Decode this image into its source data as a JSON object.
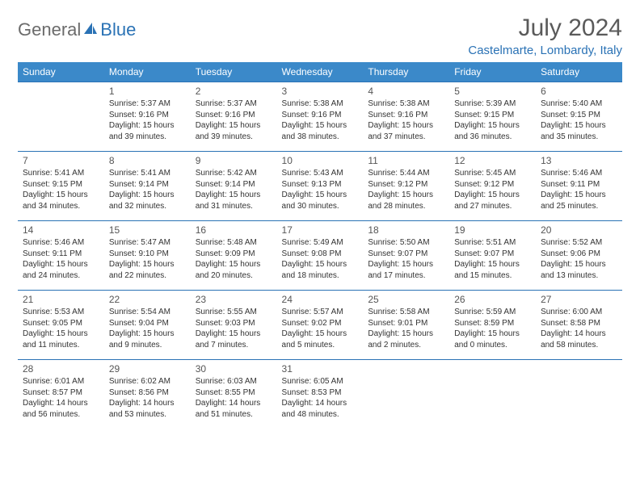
{
  "logo": {
    "text1": "General",
    "text2": "Blue"
  },
  "title": "July 2024",
  "location": "Castelmarte, Lombardy, Italy",
  "colors": {
    "header_bg": "#3b89c9",
    "header_text": "#ffffff",
    "accent": "#2a72b5",
    "body_text": "#333333",
    "title_text": "#5a5a5a",
    "logo_gray": "#6b6b6b",
    "background": "#ffffff"
  },
  "day_headers": [
    "Sunday",
    "Monday",
    "Tuesday",
    "Wednesday",
    "Thursday",
    "Friday",
    "Saturday"
  ],
  "first_day_index": 1,
  "days": [
    {
      "n": 1,
      "sr": "5:37 AM",
      "ss": "9:16 PM",
      "dl": "15 hours and 39 minutes."
    },
    {
      "n": 2,
      "sr": "5:37 AM",
      "ss": "9:16 PM",
      "dl": "15 hours and 39 minutes."
    },
    {
      "n": 3,
      "sr": "5:38 AM",
      "ss": "9:16 PM",
      "dl": "15 hours and 38 minutes."
    },
    {
      "n": 4,
      "sr": "5:38 AM",
      "ss": "9:16 PM",
      "dl": "15 hours and 37 minutes."
    },
    {
      "n": 5,
      "sr": "5:39 AM",
      "ss": "9:15 PM",
      "dl": "15 hours and 36 minutes."
    },
    {
      "n": 6,
      "sr": "5:40 AM",
      "ss": "9:15 PM",
      "dl": "15 hours and 35 minutes."
    },
    {
      "n": 7,
      "sr": "5:41 AM",
      "ss": "9:15 PM",
      "dl": "15 hours and 34 minutes."
    },
    {
      "n": 8,
      "sr": "5:41 AM",
      "ss": "9:14 PM",
      "dl": "15 hours and 32 minutes."
    },
    {
      "n": 9,
      "sr": "5:42 AM",
      "ss": "9:14 PM",
      "dl": "15 hours and 31 minutes."
    },
    {
      "n": 10,
      "sr": "5:43 AM",
      "ss": "9:13 PM",
      "dl": "15 hours and 30 minutes."
    },
    {
      "n": 11,
      "sr": "5:44 AM",
      "ss": "9:12 PM",
      "dl": "15 hours and 28 minutes."
    },
    {
      "n": 12,
      "sr": "5:45 AM",
      "ss": "9:12 PM",
      "dl": "15 hours and 27 minutes."
    },
    {
      "n": 13,
      "sr": "5:46 AM",
      "ss": "9:11 PM",
      "dl": "15 hours and 25 minutes."
    },
    {
      "n": 14,
      "sr": "5:46 AM",
      "ss": "9:11 PM",
      "dl": "15 hours and 24 minutes."
    },
    {
      "n": 15,
      "sr": "5:47 AM",
      "ss": "9:10 PM",
      "dl": "15 hours and 22 minutes."
    },
    {
      "n": 16,
      "sr": "5:48 AM",
      "ss": "9:09 PM",
      "dl": "15 hours and 20 minutes."
    },
    {
      "n": 17,
      "sr": "5:49 AM",
      "ss": "9:08 PM",
      "dl": "15 hours and 18 minutes."
    },
    {
      "n": 18,
      "sr": "5:50 AM",
      "ss": "9:07 PM",
      "dl": "15 hours and 17 minutes."
    },
    {
      "n": 19,
      "sr": "5:51 AM",
      "ss": "9:07 PM",
      "dl": "15 hours and 15 minutes."
    },
    {
      "n": 20,
      "sr": "5:52 AM",
      "ss": "9:06 PM",
      "dl": "15 hours and 13 minutes."
    },
    {
      "n": 21,
      "sr": "5:53 AM",
      "ss": "9:05 PM",
      "dl": "15 hours and 11 minutes."
    },
    {
      "n": 22,
      "sr": "5:54 AM",
      "ss": "9:04 PM",
      "dl": "15 hours and 9 minutes."
    },
    {
      "n": 23,
      "sr": "5:55 AM",
      "ss": "9:03 PM",
      "dl": "15 hours and 7 minutes."
    },
    {
      "n": 24,
      "sr": "5:57 AM",
      "ss": "9:02 PM",
      "dl": "15 hours and 5 minutes."
    },
    {
      "n": 25,
      "sr": "5:58 AM",
      "ss": "9:01 PM",
      "dl": "15 hours and 2 minutes."
    },
    {
      "n": 26,
      "sr": "5:59 AM",
      "ss": "8:59 PM",
      "dl": "15 hours and 0 minutes."
    },
    {
      "n": 27,
      "sr": "6:00 AM",
      "ss": "8:58 PM",
      "dl": "14 hours and 58 minutes."
    },
    {
      "n": 28,
      "sr": "6:01 AM",
      "ss": "8:57 PM",
      "dl": "14 hours and 56 minutes."
    },
    {
      "n": 29,
      "sr": "6:02 AM",
      "ss": "8:56 PM",
      "dl": "14 hours and 53 minutes."
    },
    {
      "n": 30,
      "sr": "6:03 AM",
      "ss": "8:55 PM",
      "dl": "14 hours and 51 minutes."
    },
    {
      "n": 31,
      "sr": "6:05 AM",
      "ss": "8:53 PM",
      "dl": "14 hours and 48 minutes."
    }
  ],
  "labels": {
    "sunrise": "Sunrise:",
    "sunset": "Sunset:",
    "daylight": "Daylight:"
  }
}
